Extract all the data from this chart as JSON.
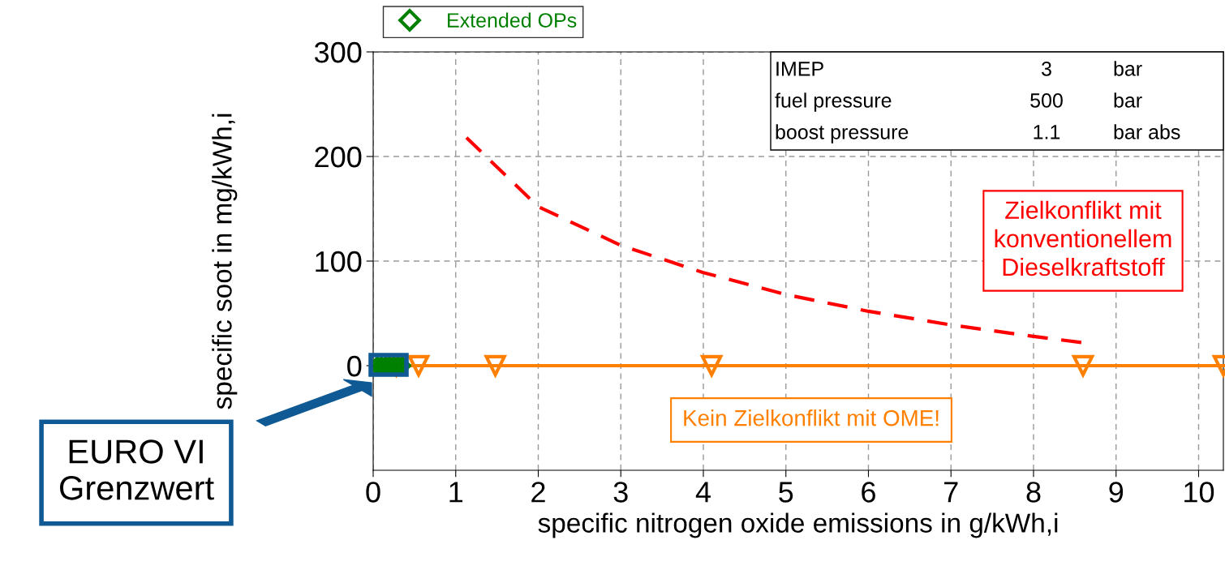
{
  "chart_data": {
    "type": "scatter",
    "xlabel": "specific nitrogen oxide emissions in g/kWh,i",
    "ylabel": "specific soot in mg/kWh,i",
    "xlim": [
      0,
      10.3
    ],
    "xticks": [
      0,
      1,
      2,
      3,
      4,
      5,
      6,
      7,
      8,
      9,
      10
    ],
    "ylim": [
      -100,
      300
    ],
    "yticks": [
      0,
      100,
      200,
      300
    ],
    "grid": true,
    "legend": "top left",
    "series": [
      {
        "name": "Extended OPs",
        "marker": "diamond",
        "color": "#008000",
        "x": [
          0.05,
          0.1,
          0.15,
          0.2,
          0.25,
          0.3,
          0.35
        ],
        "values": [
          0,
          0,
          0,
          0,
          0,
          0,
          0
        ]
      },
      {
        "type": "line",
        "marker": "triangle",
        "color": "#ff8000",
        "x": [
          0.28,
          0.55,
          1.48,
          4.1,
          8.6,
          10.3
        ],
        "values": [
          0,
          0,
          0,
          0,
          0,
          0
        ]
      },
      {
        "type": "line",
        "marker": "none",
        "line_style": "dashed",
        "color": "#ff0000",
        "x": [
          1.13,
          2,
          3,
          4,
          5,
          6,
          7,
          8,
          8.6
        ],
        "values": [
          218,
          152,
          115,
          89,
          68,
          52,
          39,
          28,
          22
        ]
      }
    ],
    "annotations": [
      "IMEP",
      "3",
      "bar",
      "fuel pressure",
      "500",
      "bar",
      "boost pressure",
      "1.1",
      "bar abs",
      "Zielkonflikt mit\nkonventionellem\nDieselkraftstoff",
      "Kein Zielkonflikt mit OME!",
      "EURO VI\nGrenzwert"
    ]
  }
}
